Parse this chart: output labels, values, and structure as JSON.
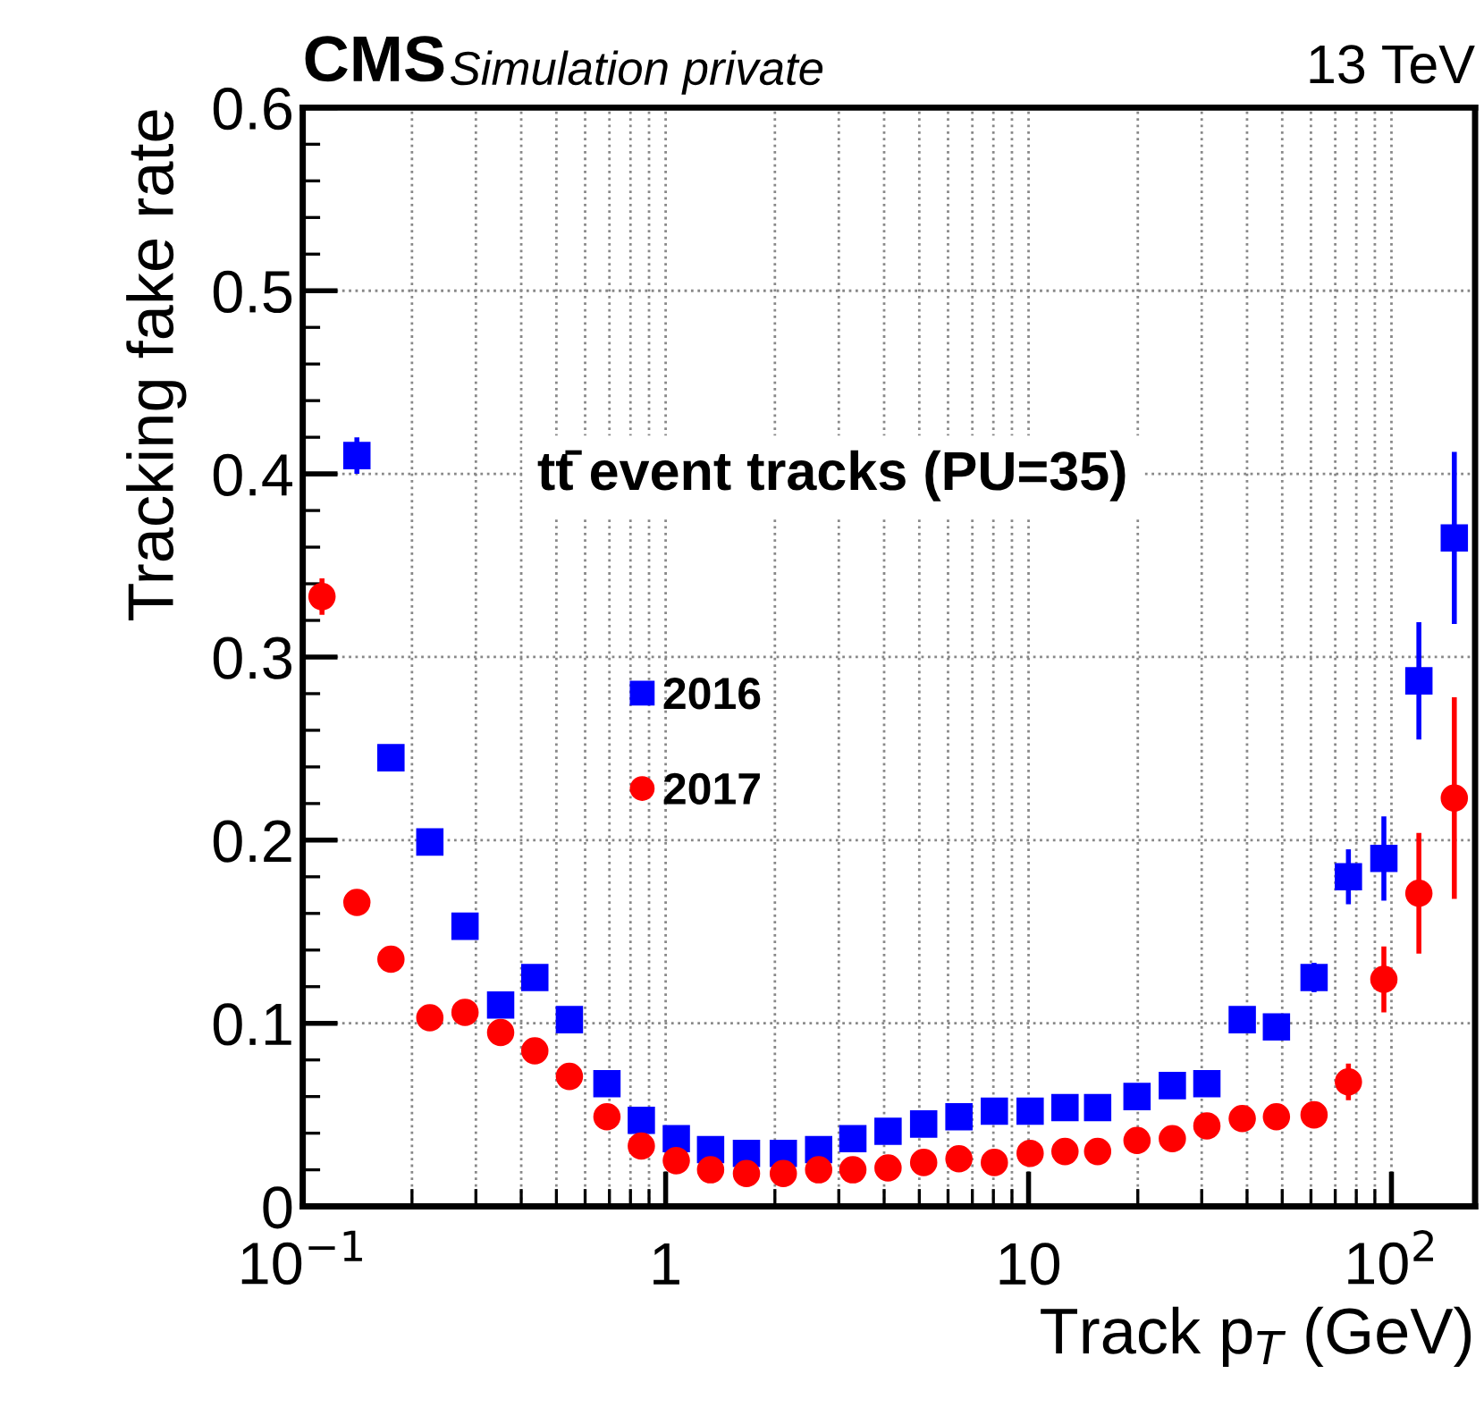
{
  "chart_data": {
    "type": "scatter",
    "x": [
      0.113,
      0.141,
      0.175,
      0.224,
      0.28,
      0.351,
      0.436,
      0.543,
      0.689,
      0.857,
      1.07,
      1.33,
      1.67,
      2.11,
      2.64,
      3.28,
      4.1,
      5.14,
      6.43,
      8.05,
      10.1,
      12.6,
      15.5,
      19.9,
      24.9,
      31.0,
      38.8,
      48.2,
      61.2,
      76.1,
      95.3,
      119,
      149
    ],
    "series": [
      {
        "name": "2016",
        "color": "#0000ff",
        "marker": "square",
        "values": [
          null,
          0.41,
          0.245,
          0.199,
          0.153,
          0.11,
          0.125,
          0.102,
          0.067,
          0.047,
          0.037,
          0.031,
          0.029,
          0.029,
          0.031,
          0.037,
          0.041,
          0.045,
          0.049,
          0.052,
          0.052,
          0.054,
          0.054,
          0.06,
          0.066,
          0.067,
          0.102,
          0.098,
          0.125,
          0.18,
          0.19,
          0.287,
          0.365
        ],
        "errors": [
          null,
          0.01,
          null,
          null,
          null,
          null,
          null,
          null,
          null,
          null,
          null,
          null,
          null,
          null,
          null,
          null,
          null,
          null,
          null,
          null,
          null,
          null,
          null,
          null,
          null,
          null,
          null,
          null,
          0.008,
          0.015,
          0.023,
          0.032,
          0.047
        ]
      },
      {
        "name": "2017",
        "color": "#ff0000",
        "marker": "circle",
        "values": [
          0.333,
          0.166,
          0.135,
          0.103,
          0.106,
          0.095,
          0.085,
          0.071,
          0.049,
          0.033,
          0.025,
          0.02,
          0.018,
          0.018,
          0.02,
          0.02,
          0.021,
          0.024,
          0.026,
          0.024,
          0.029,
          0.03,
          0.03,
          0.036,
          0.037,
          0.044,
          0.048,
          0.049,
          0.05,
          0.068,
          0.124,
          0.171,
          0.223
        ],
        "errors": [
          0.01,
          null,
          null,
          null,
          null,
          null,
          null,
          null,
          null,
          null,
          null,
          null,
          null,
          null,
          null,
          null,
          null,
          null,
          null,
          null,
          null,
          null,
          null,
          null,
          null,
          null,
          null,
          null,
          null,
          0.01,
          0.018,
          0.033,
          0.055
        ]
      }
    ],
    "xlabel": "Track p$_{T}$ (GeV)",
    "ylabel": "Tracking fake rate",
    "log": "x",
    "xlim": [
      0.1,
      170
    ],
    "ylim": [
      0,
      0.6
    ],
    "xticks": [
      {
        "value": 0.1,
        "label": "10$^{−1}$"
      },
      1,
      10,
      {
        "value": 100,
        "label": "10$^{2}$"
      }
    ],
    "yticks": [
      0,
      0.1,
      0.2,
      0.3,
      0.4,
      0.5,
      0.6
    ],
    "grid": true,
    "legend": "center left",
    "annotations": [
      "CMS",
      "Simulation private",
      "13 TeV",
      "tt̄ event tracks (PU=35)"
    ]
  }
}
